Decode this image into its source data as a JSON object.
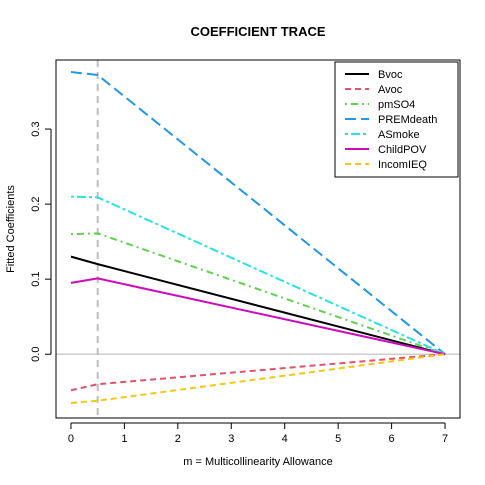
{
  "chart_data": {
    "type": "line",
    "title": "COEFFICIENT TRACE",
    "xlabel": "m = Multicollinearity Allowance",
    "ylabel": "Fitted Coefficients",
    "xlim": [
      -0.28,
      7.28
    ],
    "ylim": [
      -0.085,
      0.392
    ],
    "x_ticks": [
      0,
      1,
      2,
      3,
      4,
      5,
      6,
      7
    ],
    "y_ticks": [
      0.0,
      0.1,
      0.2,
      0.3
    ],
    "y_tick_labels": [
      "0.0",
      "0.1",
      "0.2",
      "0.3"
    ],
    "reference_hline": 0.0,
    "reference_vline": 0.5,
    "legend_position": "top-right",
    "series": [
      {
        "name": "Bvoc",
        "color": "#000000",
        "dash": "solid",
        "x": [
          0,
          0.5,
          7
        ],
        "y": [
          0.13,
          0.12,
          0.0
        ]
      },
      {
        "name": "Avoc",
        "color": "#DF536B",
        "dash": "dashed",
        "x": [
          0,
          0.5,
          7
        ],
        "y": [
          -0.048,
          -0.04,
          0.0
        ]
      },
      {
        "name": "pmSO4",
        "color": "#61D04F",
        "dash": "dotdash",
        "x": [
          0,
          0.5,
          7
        ],
        "y": [
          0.16,
          0.161,
          0.0
        ]
      },
      {
        "name": "PREMdeath",
        "color": "#2297E6",
        "dash": "longdash",
        "x": [
          0,
          0.5,
          7
        ],
        "y": [
          0.376,
          0.372,
          0.0
        ]
      },
      {
        "name": "ASmoke",
        "color": "#28E2E5",
        "dash": "twodash",
        "x": [
          0,
          0.5,
          7
        ],
        "y": [
          0.21,
          0.209,
          0.0
        ]
      },
      {
        "name": "ChildPOV",
        "color": "#CD0BBC",
        "dash": "solid",
        "x": [
          0,
          0.5,
          7
        ],
        "y": [
          0.095,
          0.101,
          0.0
        ]
      },
      {
        "name": "IncomIEQ",
        "color": "#F5C710",
        "dash": "dashed",
        "x": [
          0,
          0.5,
          7
        ],
        "y": [
          -0.065,
          -0.062,
          0.0
        ]
      }
    ]
  }
}
